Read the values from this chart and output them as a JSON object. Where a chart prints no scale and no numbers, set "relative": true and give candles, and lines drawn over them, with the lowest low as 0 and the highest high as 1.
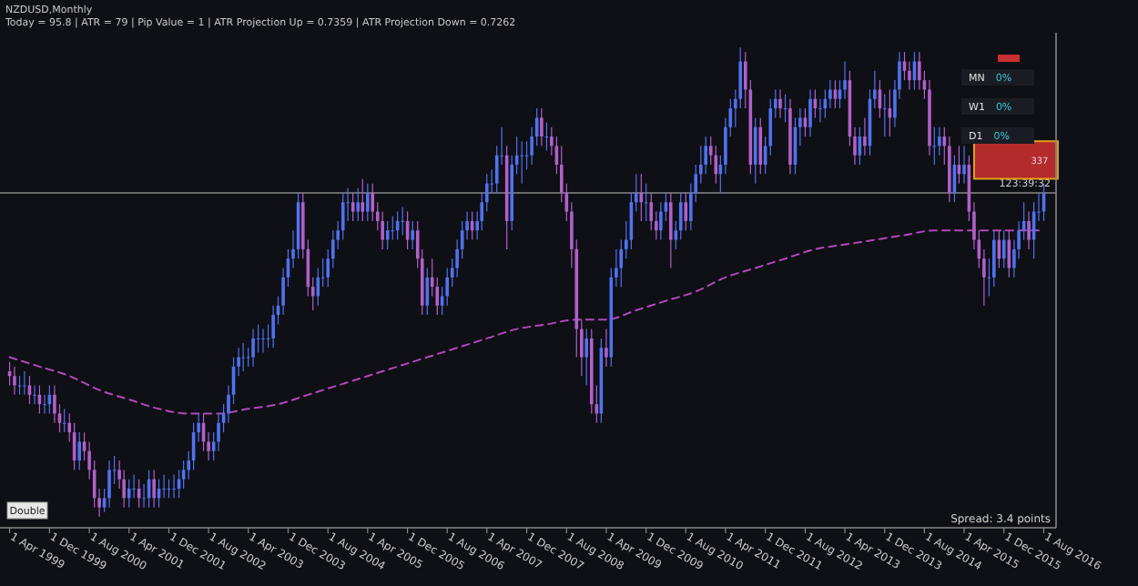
{
  "chart_data": {
    "type": "candlestick",
    "title": "NZDUSD,Monthly",
    "subtitle": "Today = 95.8 | ATR = 79 | Pip Value = 1 | ATR Projection Up = 0.7359 | ATR Projection Down = 0.7262",
    "relative": true,
    "tick_labels": "x",
    "colors": [
      "#b160c9",
      "#b160c9",
      "#4f73ee",
      "#4f73ee",
      "#b160c9",
      "#4f73ee",
      "#b160c9",
      "#4f73ee",
      "#4f73ee",
      "#b160c9",
      "#b160c9",
      "#4f73ee",
      "#b160c9",
      "#b160c9",
      "#4f73ee",
      "#b160c9",
      "#b160c9",
      "#b160c9",
      "#b160c9",
      "#4f73ee",
      "#4f73ee",
      "#4f73ee",
      "#b160c9",
      "#b160c9",
      "#4f73ee",
      "#4f73ee",
      "#b160c9",
      "#4f73ee",
      "#4f73ee",
      "#b160c9",
      "#4f73ee",
      "#4f73ee",
      "#4f73ee",
      "#4f73ee",
      "#4f73ee",
      "#4f73ee",
      "#4f73ee",
      "#4f73ee",
      "#4f73ee",
      "#b160c9",
      "#b160c9",
      "#4f73ee",
      "#4f73ee",
      "#4f73ee",
      "#4f73ee",
      "#4f73ee",
      "#4f73ee",
      "#4f73ee",
      "#4f73ee",
      "#4f73ee",
      "#4f73ee",
      "#4f73ee",
      "#4f73ee",
      "#4f73ee",
      "#4f73ee",
      "#4f73ee",
      "#4f73ee",
      "#4f73ee",
      "#4f73ee",
      "#b160c9",
      "#b160c9",
      "#b160c9",
      "#4f73ee",
      "#4f73ee",
      "#4f73ee",
      "#4f73ee",
      "#4f73ee",
      "#4f73ee",
      "#4f73ee",
      "#b160c9",
      "#4f73ee",
      "#b160c9",
      "#4f73ee",
      "#b160c9",
      "#b160c9",
      "#b160c9",
      "#4f73ee",
      "#4f73ee",
      "#4f73ee",
      "#4f73ee",
      "#b160c9",
      "#4f73ee",
      "#b160c9",
      "#b160c9",
      "#4f73ee",
      "#b160c9",
      "#b160c9",
      "#4f73ee",
      "#4f73ee",
      "#4f73ee",
      "#4f73ee",
      "#4f73ee",
      "#4f73ee",
      "#b160c9",
      "#4f73ee",
      "#4f73ee",
      "#4f73ee",
      "#4f73ee",
      "#4f73ee",
      "#4f73ee",
      "#b160c9",
      "#4f73ee",
      "#4f73ee",
      "#4f73ee",
      "#4f73ee",
      "#4f73ee",
      "#4f73ee",
      "#b160c9",
      "#4f73ee",
      "#b160c9",
      "#b160c9",
      "#b160c9",
      "#b160c9",
      "#b160c9",
      "#b160c9",
      "#b160c9",
      "#4f73ee",
      "#b160c9",
      "#b160c9",
      "#4f73ee",
      "#b160c9",
      "#4f73ee",
      "#4f73ee",
      "#4f73ee",
      "#4f73ee",
      "#4f73ee",
      "#4f73ee",
      "#b160c9",
      "#4f73ee",
      "#b160c9",
      "#b160c9",
      "#4f73ee",
      "#4f73ee",
      "#b160c9",
      "#4f73ee",
      "#4f73ee",
      "#b160c9",
      "#4f73ee",
      "#4f73ee",
      "#4f73ee",
      "#4f73ee",
      "#b160c9",
      "#b160c9",
      "#4f73ee",
      "#4f73ee",
      "#4f73ee",
      "#4f73ee",
      "#4f73ee",
      "#b160c9",
      "#b160c9",
      "#4f73ee",
      "#b160c9",
      "#4f73ee",
      "#4f73ee",
      "#4f73ee",
      "#b160c9",
      "#4f73ee",
      "#b160c9",
      "#4f73ee",
      "#4f73ee",
      "#b160c9",
      "#4f73ee",
      "#b160c9",
      "#4f73ee",
      "#4f73ee",
      "#4f73ee",
      "#b160c9",
      "#4f73ee",
      "#4f73ee",
      "#b160c9",
      "#b160c9",
      "#4f73ee",
      "#b160c9",
      "#4f73ee",
      "#4f73ee",
      "#b160c9",
      "#4f73ee",
      "#b160c9",
      "#4f73ee",
      "#4f73ee",
      "#b160c9",
      "#b160c9",
      "#4f73ee",
      "#b160c9",
      "#b160c9",
      "#b160c9",
      "#4f73ee",
      "#4f73ee",
      "#b160c9",
      "#b160c9",
      "#4f73ee",
      "#b160c9",
      "#4f73ee",
      "#b160c9",
      "#b160c9",
      "#b160c9",
      "#b160c9",
      "#4f73ee",
      "#4f73ee",
      "#b160c9",
      "#4f73ee",
      "#b160c9",
      "#4f73ee",
      "#4f73ee",
      "#4f73ee",
      "#b160c9",
      "#4f73ee",
      "#4f73ee",
      "#4f73ee"
    ],
    "xlim": [
      "1999-02-01",
      "2016-10-15"
    ],
    "xticks": [
      {
        "value": "1999-04-01",
        "label": "1 Apr 1999"
      },
      {
        "value": "1999-12-01",
        "label": "1 Dec 1999"
      },
      {
        "value": "2000-08-01",
        "label": "1 Aug 2000"
      },
      {
        "value": "2001-04-01",
        "label": "1 Apr 2001"
      },
      {
        "value": "2001-12-01",
        "label": "1 Dec 2001"
      },
      {
        "value": "2002-08-01",
        "label": "1 Aug 2002"
      },
      {
        "value": "2003-04-01",
        "label": "1 Apr 2003"
      },
      {
        "value": "2003-12-01",
        "label": "1 Dec 2003"
      },
      {
        "value": "2004-08-01",
        "label": "1 Aug 2004"
      },
      {
        "value": "2005-04-01",
        "label": "1 Apr 2005"
      },
      {
        "value": "2005-12-01",
        "label": "1 Dec 2005"
      },
      {
        "value": "2006-08-01",
        "label": "1 Aug 2006"
      },
      {
        "value": "2007-04-01",
        "label": "1 Apr 2007"
      },
      {
        "value": "2007-12-01",
        "label": "1 Dec 2007"
      },
      {
        "value": "2008-08-01",
        "label": "1 Aug 2008"
      },
      {
        "value": "2009-04-01",
        "label": "1 Apr 2009"
      },
      {
        "value": "2009-12-01",
        "label": "1 Dec 2009"
      },
      {
        "value": "2010-08-01",
        "label": "1 Aug 2010"
      },
      {
        "value": "2011-04-01",
        "label": "1 Apr 2011"
      },
      {
        "value": "2011-12-01",
        "label": "1 Dec 2011"
      },
      {
        "value": "2012-08-01",
        "label": "1 Aug 2012"
      },
      {
        "value": "2013-04-01",
        "label": "1 Apr 2013"
      },
      {
        "value": "2013-12-01",
        "label": "1 Dec 2013"
      },
      {
        "value": "2014-08-01",
        "label": "1 Aug 2014"
      },
      {
        "value": "2015-04-01",
        "label": "1 Apr 2015"
      },
      {
        "value": "2015-12-01",
        "label": "1 Dec 2015"
      },
      {
        "value": "2016-08-01",
        "label": "1 Aug 2016"
      }
    ],
    "x": [
      "1999-04",
      "1999-05",
      "1999-06",
      "1999-07",
      "1999-08",
      "1999-09",
      "1999-10",
      "1999-11",
      "1999-12",
      "2000-01",
      "2000-02",
      "2000-03",
      "2000-04",
      "2000-05",
      "2000-06",
      "2000-07",
      "2000-08",
      "2000-09",
      "2000-10",
      "2000-11",
      "2000-12",
      "2001-01",
      "2001-02",
      "2001-03",
      "2001-04",
      "2001-05",
      "2001-06",
      "2001-07",
      "2001-08",
      "2001-09",
      "2001-10",
      "2001-11",
      "2001-12",
      "2002-01",
      "2002-02",
      "2002-03",
      "2002-04",
      "2002-05",
      "2002-06",
      "2002-07",
      "2002-08",
      "2002-09",
      "2002-10",
      "2002-11",
      "2002-12",
      "2003-01",
      "2003-02",
      "2003-03",
      "2003-04",
      "2003-05",
      "2003-06",
      "2003-07",
      "2003-08",
      "2003-09",
      "2003-10",
      "2003-11",
      "2003-12",
      "2004-01",
      "2004-02",
      "2004-03",
      "2004-04",
      "2004-05",
      "2004-06",
      "2004-07",
      "2004-08",
      "2004-09",
      "2004-10",
      "2004-11",
      "2004-12",
      "2005-01",
      "2005-02",
      "2005-03",
      "2005-04",
      "2005-05",
      "2005-06",
      "2005-07",
      "2005-08",
      "2005-09",
      "2005-10",
      "2005-11",
      "2005-12",
      "2006-01",
      "2006-02",
      "2006-03",
      "2006-04",
      "2006-05",
      "2006-06",
      "2006-07",
      "2006-08",
      "2006-09",
      "2006-10",
      "2006-11",
      "2006-12",
      "2007-01",
      "2007-02",
      "2007-03",
      "2007-04",
      "2007-05",
      "2007-06",
      "2007-07",
      "2007-08",
      "2007-09",
      "2007-10",
      "2007-11",
      "2007-12",
      "2008-01",
      "2008-02",
      "2008-03",
      "2008-04",
      "2008-05",
      "2008-06",
      "2008-07",
      "2008-08",
      "2008-09",
      "2008-10",
      "2008-11",
      "2008-12",
      "2009-01",
      "2009-02",
      "2009-03",
      "2009-04",
      "2009-05",
      "2009-06",
      "2009-07",
      "2009-08",
      "2009-09",
      "2009-10",
      "2009-11",
      "2009-12",
      "2010-01",
      "2010-02",
      "2010-03",
      "2010-04",
      "2010-05",
      "2010-06",
      "2010-07",
      "2010-08",
      "2010-09",
      "2010-10",
      "2010-11",
      "2010-12",
      "2011-01",
      "2011-02",
      "2011-03",
      "2011-04",
      "2011-05",
      "2011-06",
      "2011-07",
      "2011-08",
      "2011-09",
      "2011-10",
      "2011-11",
      "2011-12",
      "2012-01",
      "2012-02",
      "2012-03",
      "2012-04",
      "2012-05",
      "2012-06",
      "2012-07",
      "2012-08",
      "2012-09",
      "2012-10",
      "2012-11",
      "2012-12",
      "2013-01",
      "2013-02",
      "2013-03",
      "2013-04",
      "2013-05",
      "2013-06",
      "2013-07",
      "2013-08",
      "2013-09",
      "2013-10",
      "2013-11",
      "2013-12",
      "2014-01",
      "2014-02",
      "2014-03",
      "2014-04",
      "2014-05",
      "2014-06",
      "2014-07",
      "2014-08",
      "2014-09",
      "2014-10",
      "2014-11",
      "2014-12",
      "2015-01",
      "2015-02",
      "2015-03",
      "2015-04",
      "2015-05",
      "2015-06",
      "2015-07",
      "2015-08",
      "2015-09",
      "2015-10",
      "2015-11",
      "2015-12",
      "2016-01",
      "2016-02",
      "2016-03",
      "2016-04",
      "2016-05",
      "2016-06",
      "2016-07",
      "2016-08"
    ],
    "ohlc": [
      [
        0.31,
        0.33,
        0.28,
        0.3
      ],
      [
        0.3,
        0.32,
        0.26,
        0.28
      ],
      [
        0.28,
        0.3,
        0.26,
        0.28
      ],
      [
        0.28,
        0.31,
        0.26,
        0.28
      ],
      [
        0.28,
        0.3,
        0.24,
        0.26
      ],
      [
        0.26,
        0.28,
        0.24,
        0.26
      ],
      [
        0.26,
        0.28,
        0.22,
        0.24
      ],
      [
        0.24,
        0.26,
        0.22,
        0.24
      ],
      [
        0.24,
        0.28,
        0.22,
        0.26
      ],
      [
        0.26,
        0.28,
        0.2,
        0.22
      ],
      [
        0.22,
        0.24,
        0.18,
        0.2
      ],
      [
        0.2,
        0.23,
        0.18,
        0.2
      ],
      [
        0.2,
        0.22,
        0.16,
        0.18
      ],
      [
        0.18,
        0.2,
        0.1,
        0.12
      ],
      [
        0.12,
        0.18,
        0.1,
        0.16
      ],
      [
        0.16,
        0.18,
        0.12,
        0.14
      ],
      [
        0.14,
        0.16,
        0.08,
        0.1
      ],
      [
        0.1,
        0.12,
        0.02,
        0.04
      ],
      [
        0.04,
        0.06,
        0,
        0.02
      ],
      [
        0.02,
        0.06,
        0.01,
        0.04
      ],
      [
        0.04,
        0.12,
        0.02,
        0.1
      ],
      [
        0.1,
        0.13,
        0.07,
        0.1
      ],
      [
        0.1,
        0.12,
        0.06,
        0.08
      ],
      [
        0.08,
        0.1,
        0.02,
        0.04
      ],
      [
        0.04,
        0.08,
        0.02,
        0.06
      ],
      [
        0.06,
        0.09,
        0.04,
        0.06
      ],
      [
        0.06,
        0.08,
        0.02,
        0.04
      ],
      [
        0.04,
        0.07,
        0.02,
        0.04
      ],
      [
        0.04,
        0.1,
        0.02,
        0.08
      ],
      [
        0.08,
        0.1,
        0.02,
        0.04
      ],
      [
        0.04,
        0.08,
        0.02,
        0.06
      ],
      [
        0.06,
        0.09,
        0.04,
        0.06
      ],
      [
        0.06,
        0.08,
        0.04,
        0.06
      ],
      [
        0.06,
        0.09,
        0.04,
        0.06
      ],
      [
        0.06,
        0.1,
        0.04,
        0.08
      ],
      [
        0.08,
        0.12,
        0.06,
        0.1
      ],
      [
        0.1,
        0.14,
        0.08,
        0.12
      ],
      [
        0.12,
        0.2,
        0.1,
        0.18
      ],
      [
        0.18,
        0.22,
        0.16,
        0.2
      ],
      [
        0.2,
        0.22,
        0.14,
        0.16
      ],
      [
        0.16,
        0.18,
        0.12,
        0.14
      ],
      [
        0.14,
        0.18,
        0.12,
        0.16
      ],
      [
        0.16,
        0.22,
        0.14,
        0.2
      ],
      [
        0.2,
        0.24,
        0.18,
        0.22
      ],
      [
        0.22,
        0.28,
        0.2,
        0.26
      ],
      [
        0.26,
        0.34,
        0.24,
        0.32
      ],
      [
        0.32,
        0.36,
        0.3,
        0.34
      ],
      [
        0.34,
        0.37,
        0.31,
        0.34
      ],
      [
        0.34,
        0.36,
        0.32,
        0.34
      ],
      [
        0.34,
        0.4,
        0.32,
        0.38
      ],
      [
        0.38,
        0.41,
        0.35,
        0.38
      ],
      [
        0.38,
        0.4,
        0.35,
        0.38
      ],
      [
        0.38,
        0.41,
        0.36,
        0.38
      ],
      [
        0.38,
        0.45,
        0.36,
        0.43
      ],
      [
        0.43,
        0.47,
        0.41,
        0.45
      ],
      [
        0.45,
        0.53,
        0.43,
        0.51
      ],
      [
        0.51,
        0.57,
        0.49,
        0.55
      ],
      [
        0.55,
        0.61,
        0.53,
        0.57
      ],
      [
        0.57,
        0.69,
        0.55,
        0.67
      ],
      [
        0.67,
        0.69,
        0.55,
        0.57
      ],
      [
        0.57,
        0.59,
        0.47,
        0.49
      ],
      [
        0.49,
        0.51,
        0.44,
        0.47
      ],
      [
        0.47,
        0.53,
        0.45,
        0.51
      ],
      [
        0.51,
        0.55,
        0.49,
        0.51
      ],
      [
        0.51,
        0.57,
        0.49,
        0.55
      ],
      [
        0.55,
        0.61,
        0.53,
        0.59
      ],
      [
        0.59,
        0.63,
        0.57,
        0.61
      ],
      [
        0.61,
        0.69,
        0.59,
        0.67
      ],
      [
        0.67,
        0.7,
        0.63,
        0.67
      ],
      [
        0.67,
        0.69,
        0.63,
        0.65
      ],
      [
        0.65,
        0.7,
        0.63,
        0.67
      ],
      [
        0.67,
        0.72,
        0.63,
        0.65
      ],
      [
        0.65,
        0.71,
        0.63,
        0.69
      ],
      [
        0.69,
        0.71,
        0.63,
        0.65
      ],
      [
        0.65,
        0.67,
        0.61,
        0.63
      ],
      [
        0.63,
        0.65,
        0.57,
        0.59
      ],
      [
        0.59,
        0.63,
        0.57,
        0.61
      ],
      [
        0.61,
        0.64,
        0.59,
        0.61
      ],
      [
        0.61,
        0.65,
        0.59,
        0.63
      ],
      [
        0.63,
        0.66,
        0.6,
        0.63
      ],
      [
        0.63,
        0.65,
        0.57,
        0.59
      ],
      [
        0.59,
        0.63,
        0.57,
        0.61
      ],
      [
        0.61,
        0.63,
        0.53,
        0.55
      ],
      [
        0.55,
        0.57,
        0.43,
        0.45
      ],
      [
        0.45,
        0.53,
        0.43,
        0.51
      ],
      [
        0.51,
        0.55,
        0.47,
        0.49
      ],
      [
        0.49,
        0.51,
        0.43,
        0.45
      ],
      [
        0.45,
        0.49,
        0.43,
        0.47
      ],
      [
        0.47,
        0.53,
        0.45,
        0.51
      ],
      [
        0.51,
        0.55,
        0.49,
        0.53
      ],
      [
        0.53,
        0.59,
        0.51,
        0.57
      ],
      [
        0.57,
        0.63,
        0.55,
        0.61
      ],
      [
        0.61,
        0.65,
        0.59,
        0.63
      ],
      [
        0.63,
        0.65,
        0.59,
        0.61
      ],
      [
        0.61,
        0.65,
        0.59,
        0.63
      ],
      [
        0.63,
        0.69,
        0.61,
        0.67
      ],
      [
        0.67,
        0.73,
        0.65,
        0.71
      ],
      [
        0.71,
        0.74,
        0.69,
        0.71
      ],
      [
        0.71,
        0.79,
        0.69,
        0.77
      ],
      [
        0.77,
        0.83,
        0.75,
        0.77
      ],
      [
        0.77,
        0.79,
        0.57,
        0.63
      ],
      [
        0.63,
        0.77,
        0.61,
        0.75
      ],
      [
        0.75,
        0.81,
        0.73,
        0.77
      ],
      [
        0.77,
        0.8,
        0.71,
        0.77
      ],
      [
        0.77,
        0.8,
        0.74,
        0.77
      ],
      [
        0.77,
        0.83,
        0.75,
        0.81
      ],
      [
        0.81,
        0.87,
        0.79,
        0.85
      ],
      [
        0.85,
        0.87,
        0.79,
        0.81
      ],
      [
        0.81,
        0.84,
        0.78,
        0.81
      ],
      [
        0.81,
        0.83,
        0.77,
        0.79
      ],
      [
        0.79,
        0.81,
        0.73,
        0.75
      ],
      [
        0.75,
        0.79,
        0.67,
        0.69
      ],
      [
        0.69,
        0.71,
        0.63,
        0.65
      ],
      [
        0.65,
        0.67,
        0.53,
        0.57
      ],
      [
        0.57,
        0.59,
        0.34,
        0.4
      ],
      [
        0.4,
        0.42,
        0.3,
        0.34
      ],
      [
        0.34,
        0.4,
        0.28,
        0.38
      ],
      [
        0.38,
        0.4,
        0.22,
        0.24
      ],
      [
        0.24,
        0.28,
        0.2,
        0.22
      ],
      [
        0.22,
        0.38,
        0.2,
        0.36
      ],
      [
        0.36,
        0.4,
        0.32,
        0.34
      ],
      [
        0.34,
        0.53,
        0.32,
        0.51
      ],
      [
        0.51,
        0.57,
        0.49,
        0.53
      ],
      [
        0.53,
        0.59,
        0.49,
        0.57
      ],
      [
        0.57,
        0.63,
        0.55,
        0.59
      ],
      [
        0.59,
        0.69,
        0.57,
        0.67
      ],
      [
        0.67,
        0.73,
        0.65,
        0.69
      ],
      [
        0.69,
        0.73,
        0.63,
        0.67
      ],
      [
        0.67,
        0.71,
        0.63,
        0.67
      ],
      [
        0.67,
        0.69,
        0.61,
        0.63
      ],
      [
        0.63,
        0.65,
        0.59,
        0.61
      ],
      [
        0.61,
        0.67,
        0.59,
        0.65
      ],
      [
        0.65,
        0.69,
        0.63,
        0.67
      ],
      [
        0.67,
        0.69,
        0.53,
        0.59
      ],
      [
        0.59,
        0.63,
        0.57,
        0.61
      ],
      [
        0.61,
        0.69,
        0.59,
        0.67
      ],
      [
        0.67,
        0.69,
        0.61,
        0.63
      ],
      [
        0.63,
        0.71,
        0.61,
        0.69
      ],
      [
        0.69,
        0.75,
        0.67,
        0.73
      ],
      [
        0.73,
        0.79,
        0.71,
        0.75
      ],
      [
        0.75,
        0.81,
        0.73,
        0.79
      ],
      [
        0.79,
        0.81,
        0.75,
        0.77
      ],
      [
        0.77,
        0.79,
        0.71,
        0.73
      ],
      [
        0.73,
        0.77,
        0.69,
        0.75
      ],
      [
        0.75,
        0.85,
        0.73,
        0.83
      ],
      [
        0.83,
        0.89,
        0.81,
        0.87
      ],
      [
        0.87,
        0.91,
        0.83,
        0.89
      ],
      [
        0.89,
        1,
        0.87,
        0.97
      ],
      [
        0.97,
        0.99,
        0.87,
        0.91
      ],
      [
        0.91,
        0.93,
        0.73,
        0.75
      ],
      [
        0.75,
        0.85,
        0.71,
        0.83
      ],
      [
        0.83,
        0.85,
        0.73,
        0.75
      ],
      [
        0.75,
        0.81,
        0.73,
        0.79
      ],
      [
        0.79,
        0.89,
        0.77,
        0.87
      ],
      [
        0.87,
        0.91,
        0.85,
        0.89
      ],
      [
        0.89,
        0.91,
        0.85,
        0.87
      ],
      [
        0.87,
        0.9,
        0.84,
        0.87
      ],
      [
        0.87,
        0.89,
        0.73,
        0.75
      ],
      [
        0.75,
        0.85,
        0.73,
        0.83
      ],
      [
        0.83,
        0.87,
        0.79,
        0.85
      ],
      [
        0.85,
        0.87,
        0.81,
        0.83
      ],
      [
        0.83,
        0.91,
        0.81,
        0.89
      ],
      [
        0.89,
        0.91,
        0.85,
        0.87
      ],
      [
        0.87,
        0.89,
        0.84,
        0.87
      ],
      [
        0.87,
        0.91,
        0.85,
        0.89
      ],
      [
        0.89,
        0.93,
        0.87,
        0.91
      ],
      [
        0.91,
        0.93,
        0.87,
        0.89
      ],
      [
        0.89,
        0.93,
        0.87,
        0.91
      ],
      [
        0.91,
        0.97,
        0.89,
        0.93
      ],
      [
        0.93,
        0.95,
        0.79,
        0.81
      ],
      [
        0.81,
        0.83,
        0.75,
        0.77
      ],
      [
        0.77,
        0.83,
        0.75,
        0.81
      ],
      [
        0.81,
        0.85,
        0.77,
        0.79
      ],
      [
        0.79,
        0.91,
        0.77,
        0.89
      ],
      [
        0.89,
        0.95,
        0.87,
        0.91
      ],
      [
        0.91,
        0.93,
        0.85,
        0.87
      ],
      [
        0.87,
        0.9,
        0.81,
        0.87
      ],
      [
        0.87,
        0.91,
        0.81,
        0.85
      ],
      [
        0.85,
        0.93,
        0.83,
        0.91
      ],
      [
        0.91,
        0.99,
        0.89,
        0.97
      ],
      [
        0.97,
        0.99,
        0.93,
        0.95
      ],
      [
        0.95,
        0.97,
        0.91,
        0.93
      ],
      [
        0.93,
        0.99,
        0.91,
        0.97
      ],
      [
        0.97,
        0.99,
        0.91,
        0.93
      ],
      [
        0.93,
        0.95,
        0.89,
        0.91
      ],
      [
        0.91,
        0.93,
        0.77,
        0.79
      ],
      [
        0.79,
        0.83,
        0.75,
        0.79
      ],
      [
        0.79,
        0.83,
        0.77,
        0.81
      ],
      [
        0.81,
        0.83,
        0.75,
        0.79
      ],
      [
        0.79,
        0.81,
        0.67,
        0.69
      ],
      [
        0.69,
        0.77,
        0.67,
        0.75
      ],
      [
        0.75,
        0.79,
        0.71,
        0.73
      ],
      [
        0.73,
        0.79,
        0.71,
        0.75
      ],
      [
        0.75,
        0.77,
        0.63,
        0.65
      ],
      [
        0.65,
        0.67,
        0.57,
        0.59
      ],
      [
        0.59,
        0.61,
        0.53,
        0.55
      ],
      [
        0.55,
        0.57,
        0.45,
        0.51
      ],
      [
        0.51,
        0.55,
        0.47,
        0.51
      ],
      [
        0.51,
        0.61,
        0.49,
        0.59
      ],
      [
        0.59,
        0.61,
        0.53,
        0.55
      ],
      [
        0.55,
        0.61,
        0.53,
        0.59
      ],
      [
        0.59,
        0.61,
        0.51,
        0.53
      ],
      [
        0.53,
        0.59,
        0.51,
        0.57
      ],
      [
        0.57,
        0.63,
        0.55,
        0.61
      ],
      [
        0.61,
        0.67,
        0.59,
        0.63
      ],
      [
        0.63,
        0.65,
        0.57,
        0.59
      ],
      [
        0.59,
        0.67,
        0.55,
        0.65
      ],
      [
        0.65,
        0.69,
        0.63,
        0.65
      ],
      [
        0.65,
        0.71,
        0.63,
        0.69
      ]
    ],
    "series": [
      {
        "type": "line",
        "color": "#b04ab8",
        "line_style": "dashed",
        "x": [
          "1999-04",
          "1999-10",
          "2000-04",
          "2000-10",
          "2001-04",
          "2001-10",
          "2002-04",
          "2002-10",
          "2003-04",
          "2003-10",
          "2004-04",
          "2004-10",
          "2005-04",
          "2005-10",
          "2006-04",
          "2006-10",
          "2007-04",
          "2007-10",
          "2008-04",
          "2008-10",
          "2009-04",
          "2009-10",
          "2010-04",
          "2010-10",
          "2011-04",
          "2011-10",
          "2012-04",
          "2012-10",
          "2013-04",
          "2013-10",
          "2014-04",
          "2014-10",
          "2015-04",
          "2015-10",
          "2016-04",
          "2016-08"
        ],
        "values": [
          0.34,
          0.32,
          0.3,
          0.27,
          0.25,
          0.23,
          0.22,
          0.22,
          0.23,
          0.24,
          0.26,
          0.28,
          0.3,
          0.32,
          0.34,
          0.36,
          0.38,
          0.4,
          0.41,
          0.42,
          0.42,
          0.44,
          0.46,
          0.48,
          0.51,
          0.53,
          0.55,
          0.57,
          0.58,
          0.59,
          0.6,
          0.61,
          0.61,
          0.61,
          0.61,
          0.61
        ]
      }
    ],
    "ref_lines": [
      {
        "axis": "y",
        "value": 0.69,
        "color": "#8a8a8a"
      }
    ],
    "annotations": [
      "MN 0%",
      "W1 0%",
      "D1 0%",
      "337",
      "Double",
      "Spread: 3.4 points",
      "123:39:32"
    ]
  }
}
